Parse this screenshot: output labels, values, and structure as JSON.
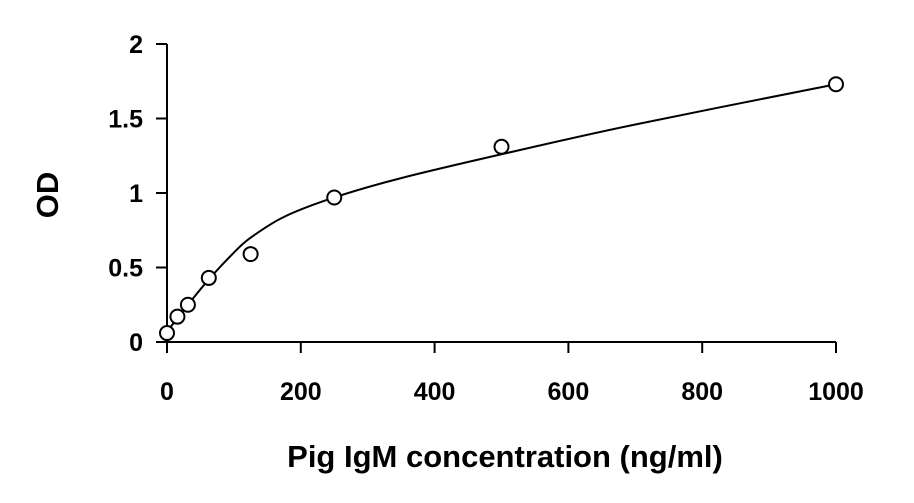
{
  "chart_data": {
    "type": "scatter",
    "title": "",
    "xlabel": "Pig IgM concentration (ng/ml)",
    "ylabel": "OD",
    "xlim": [
      0,
      1000
    ],
    "ylim": [
      0,
      2
    ],
    "xticks": [
      0,
      200,
      400,
      600,
      800,
      1000
    ],
    "yticks": [
      0,
      0.5,
      1,
      1.5,
      2
    ],
    "xtick_labels": [
      "0",
      "200",
      "400",
      "600",
      "800",
      "1000"
    ],
    "ytick_labels": [
      "0",
      "0.5",
      "1",
      "1.5",
      "2"
    ],
    "grid": false,
    "legend": "none",
    "series": [
      {
        "marker": "open-circle",
        "x": [
          0,
          15.6,
          31.25,
          62.5,
          125,
          250,
          500,
          1000
        ],
        "y": [
          0.06,
          0.17,
          0.25,
          0.43,
          0.59,
          0.97,
          1.31,
          1.73
        ]
      }
    ],
    "fit_curve": {
      "type": "smooth",
      "x": [
        0,
        15.6,
        31.25,
        62.5,
        100,
        125,
        175,
        250,
        350,
        500,
        700,
        1000
      ],
      "y": [
        0.07,
        0.16,
        0.25,
        0.42,
        0.6,
        0.7,
        0.84,
        0.97,
        1.1,
        1.26,
        1.46,
        1.73
      ]
    },
    "colors": {
      "axis": "#000000",
      "marker_stroke": "#000000",
      "marker_fill": "#ffffff",
      "curve": "#000000"
    }
  }
}
